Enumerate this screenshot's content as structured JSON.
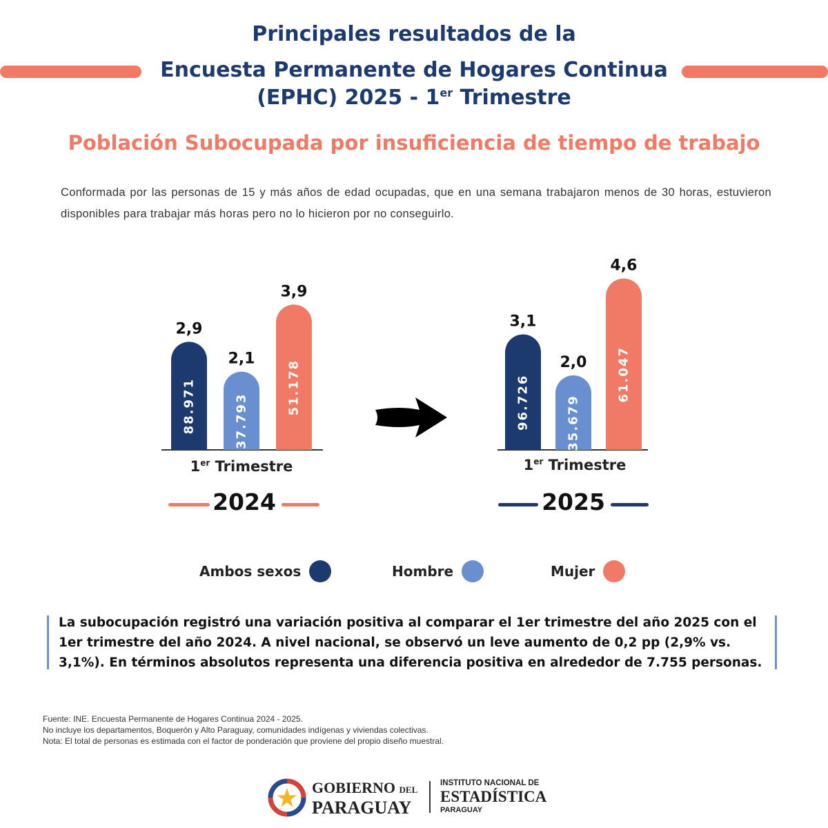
{
  "header": {
    "title_line1": "Principales resultados de la",
    "title_line2": "Encuesta Permanente de Hogares Continua",
    "title_line3_main": "(EPHC) 2025 - 1",
    "title_line3_sup": "er",
    "title_line3_end": " Trimestre",
    "subtitle": "Población Subocupada por insuficiencia de tiempo de trabajo",
    "description": "Conformada por las personas de 15 y más años de edad ocupadas, que en una semana trabajaron menos de 30 horas, estuvieron disponibles para trabajar más horas pero no lo hicieron por no conseguirlo."
  },
  "colors": {
    "ambos": "#1d3a6e",
    "hombre": "#6a8fd0",
    "mujer": "#f07a66",
    "title": "#1d3a6e",
    "accent": "#f07a66"
  },
  "chart_data": [
    {
      "type": "bar",
      "period_label_main": "1",
      "period_label_sup": "er",
      "period_label_end": " Trimestre",
      "year": "2024",
      "categories": [
        "Ambos sexos",
        "Hombre",
        "Mujer"
      ],
      "percent_labels": [
        "2,9",
        "2,1",
        "3,9"
      ],
      "percent_values": [
        2.9,
        2.1,
        3.9
      ],
      "count_labels": [
        "88.971",
        "37.793",
        "51.178"
      ],
      "count_values": [
        88971,
        37793,
        51178
      ]
    },
    {
      "type": "bar",
      "period_label_main": "1",
      "period_label_sup": "er",
      "period_label_end": " Trimestre",
      "year": "2025",
      "categories": [
        "Ambos sexos",
        "Hombre",
        "Mujer"
      ],
      "percent_labels": [
        "3,1",
        "2,0",
        "4,6"
      ],
      "percent_values": [
        3.1,
        2.0,
        4.6
      ],
      "count_labels": [
        "96.726",
        "35.679",
        "61.047"
      ],
      "count_values": [
        96726,
        35679,
        61047
      ]
    }
  ],
  "legend": [
    {
      "label": "Ambos sexos",
      "color": "#1d3a6e"
    },
    {
      "label": "Hombre",
      "color": "#6a8fd0"
    },
    {
      "label": "Mujer",
      "color": "#f07a66"
    }
  ],
  "note": "La subocupación registró una variación positiva al comparar el 1er trimestre del año 2025 con el 1er trimestre del año 2024. A nivel nacional, se observó un leve aumento de 0,2 pp (2,9% vs. 3,1%). En términos absolutos representa una diferencia positiva en alrededor de 7.755 personas.",
  "footnotes": [
    "Fuente: INE. Encuesta Permanente de Hogares Continua 2024 - 2025.",
    "No incluye los departamentos, Boquerón y Alto Paraguay, comunidades indígenas y viviendas colectivas.",
    "Nota: El total de personas es estimada con el factor de ponderación que proviene del propio diseño muestral."
  ],
  "footer": {
    "gov_line1": "GOBIERNO",
    "gov_del": "DEL",
    "gov_line2": "PARAGUAY",
    "ine_line1": "INSTITUTO NACIONAL DE",
    "ine_line2": "ESTADÍSTICA",
    "ine_line3": "PARAGUAY"
  }
}
